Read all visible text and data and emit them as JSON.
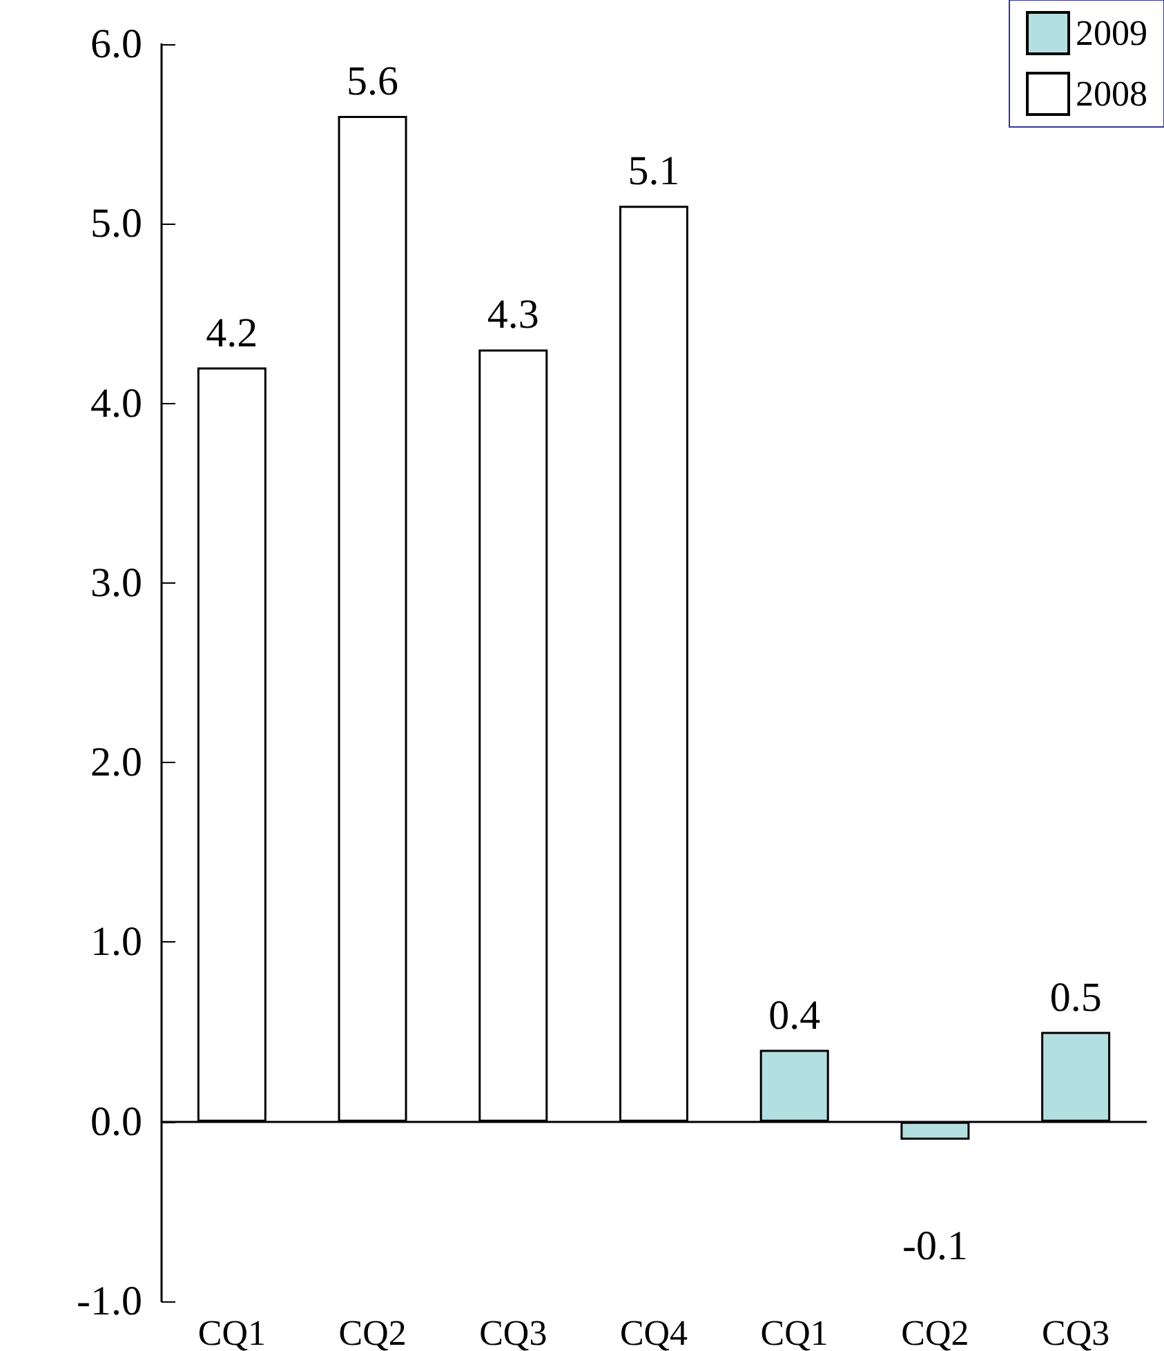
{
  "chart_data": {
    "type": "bar",
    "categories": [
      "CQ1",
      "CQ2",
      "CQ3",
      "CQ4",
      "CQ1",
      "CQ2",
      "CQ3"
    ],
    "series": [
      {
        "name": "2009",
        "color": "#b4dfe0",
        "values": [
          null,
          null,
          null,
          null,
          0.4,
          -0.1,
          0.5
        ]
      },
      {
        "name": "2008",
        "color": "#ffffff",
        "values": [
          4.2,
          5.6,
          4.3,
          5.1,
          null,
          null,
          null
        ]
      }
    ],
    "ylim": [
      -1,
      6
    ],
    "yticks": [
      {
        "value": -1,
        "label": "-1.0"
      },
      {
        "value": 0,
        "label": "0.0"
      },
      {
        "value": 1,
        "label": "1.0"
      },
      {
        "value": 2,
        "label": "2.0"
      },
      {
        "value": 3,
        "label": "3.0"
      },
      {
        "value": 4,
        "label": "4.0"
      },
      {
        "value": 5,
        "label": "5.0"
      },
      {
        "value": 6,
        "label": "6.0"
      }
    ],
    "data_labels": true,
    "legend": "top right"
  }
}
